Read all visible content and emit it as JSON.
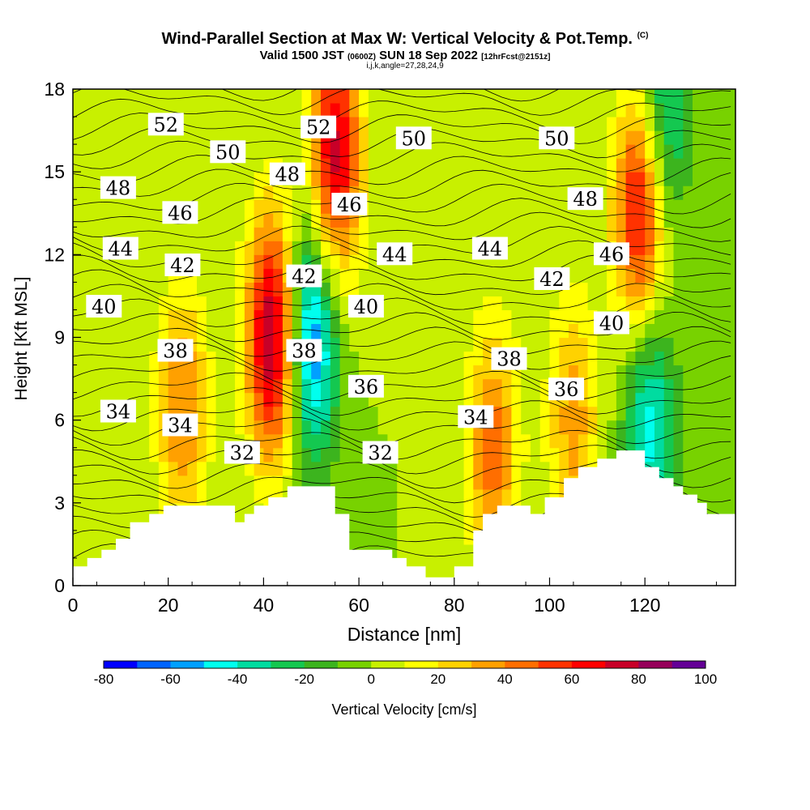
{
  "title": {
    "main": "Wind-Parallel Section at Max W: Vertical Velocity & Pot.Temp.",
    "copyright": "(C)",
    "valid_prefix": "Valid 1500 JST",
    "valid_utc": "(0600Z)",
    "valid_date": "SUN 18 Sep 2022",
    "forecast_note": "[12hrFcst@2151z]",
    "params": "i,j,k,angle=27,28,24,9"
  },
  "colorbar": {
    "label": "Vertical Velocity [cm/s]",
    "tick_labels": [
      "-80",
      "-60",
      "-40",
      "-20",
      "0",
      "20",
      "40",
      "60",
      "80",
      "100"
    ],
    "colors": [
      "#0000ff",
      "#0064ff",
      "#00a0ff",
      "#00ffee",
      "#00dca0",
      "#14c850",
      "#3cb41e",
      "#78d200",
      "#c8f000",
      "#ffff00",
      "#ffd200",
      "#ffa000",
      "#ff6e00",
      "#ff3200",
      "#ff0000",
      "#c80028",
      "#96005a",
      "#640096"
    ]
  },
  "chart_data": {
    "type": "heatmap",
    "xlabel": "Distance [nm]",
    "ylabel": "Height [Kft MSL]",
    "xlim": [
      0,
      139
    ],
    "ylim": [
      0,
      18
    ],
    "x_ticks": [
      "0",
      "20",
      "40",
      "60",
      "80",
      "100",
      "120"
    ],
    "y_ticks": [
      "0",
      "3",
      "6",
      "9",
      "12",
      "15",
      "18"
    ],
    "fill_variable": "Vertical Velocity [cm/s]",
    "fill_range": [
      -80,
      100
    ],
    "velocity_features": [
      {
        "x": 23,
        "y": 6.5,
        "w": 40
      },
      {
        "x": 42,
        "y": 9,
        "w": 85
      },
      {
        "x": 50,
        "y": 9,
        "w": -65
      },
      {
        "x": 55,
        "y": 15.5,
        "w": 75
      },
      {
        "x": 88,
        "y": 5,
        "w": 45
      },
      {
        "x": 105,
        "y": 6,
        "w": 35
      },
      {
        "x": 119,
        "y": 13.5,
        "w": 70
      },
      {
        "x": 121,
        "y": 6,
        "w": -45
      },
      {
        "x": 124,
        "y": 17,
        "w": -40
      }
    ],
    "terrain": [
      [
        0,
        0.7
      ],
      [
        3,
        0.7
      ],
      [
        3,
        1.0
      ],
      [
        6,
        1.0
      ],
      [
        6,
        1.3
      ],
      [
        9,
        1.3
      ],
      [
        9,
        1.7
      ],
      [
        12,
        1.7
      ],
      [
        12,
        2.3
      ],
      [
        16,
        2.3
      ],
      [
        16,
        2.6
      ],
      [
        19,
        2.6
      ],
      [
        19,
        2.9
      ],
      [
        23,
        2.9
      ],
      [
        34,
        2.9
      ],
      [
        34,
        2.3
      ],
      [
        36,
        2.3
      ],
      [
        36,
        2.6
      ],
      [
        38,
        2.6
      ],
      [
        38,
        2.9
      ],
      [
        41,
        2.9
      ],
      [
        41,
        3.2
      ],
      [
        45,
        3.2
      ],
      [
        45,
        3.6
      ],
      [
        55,
        3.6
      ],
      [
        55,
        2.6
      ],
      [
        58,
        2.6
      ],
      [
        58,
        1.3
      ],
      [
        67,
        1.3
      ],
      [
        67,
        1.0
      ],
      [
        70,
        1.0
      ],
      [
        70,
        0.7
      ],
      [
        74,
        0.7
      ],
      [
        74,
        0.3
      ],
      [
        80,
        0.3
      ],
      [
        80,
        0.7
      ],
      [
        84,
        0.7
      ],
      [
        84,
        2.0
      ],
      [
        86,
        2.0
      ],
      [
        86,
        2.6
      ],
      [
        89,
        2.6
      ],
      [
        89,
        2.9
      ],
      [
        96,
        2.9
      ],
      [
        96,
        2.6
      ],
      [
        99,
        2.6
      ],
      [
        99,
        3.2
      ],
      [
        103,
        3.2
      ],
      [
        103,
        3.9
      ],
      [
        106,
        3.9
      ],
      [
        106,
        4.3
      ],
      [
        110,
        4.3
      ],
      [
        110,
        4.6
      ],
      [
        114,
        4.6
      ],
      [
        114,
        4.9
      ],
      [
        120,
        4.9
      ],
      [
        120,
        4.3
      ],
      [
        123,
        4.3
      ],
      [
        123,
        3.9
      ],
      [
        126,
        3.9
      ],
      [
        126,
        3.6
      ],
      [
        128,
        3.6
      ],
      [
        128,
        3.3
      ],
      [
        131,
        3.3
      ],
      [
        131,
        3.0
      ],
      [
        133,
        3.0
      ],
      [
        133,
        2.6
      ],
      [
        139,
        2.6
      ]
    ],
    "contour_labels": [
      {
        "text": "52",
        "x": 19.5,
        "y": 16.7
      },
      {
        "text": "52",
        "x": 51.5,
        "y": 16.6
      },
      {
        "text": "50",
        "x": 32.5,
        "y": 15.7
      },
      {
        "text": "50",
        "x": 71.5,
        "y": 16.2
      },
      {
        "text": "50",
        "x": 101.5,
        "y": 16.2
      },
      {
        "text": "48",
        "x": 9.5,
        "y": 14.4
      },
      {
        "text": "48",
        "x": 45,
        "y": 14.9
      },
      {
        "text": "48",
        "x": 107.5,
        "y": 14.0
      },
      {
        "text": "46",
        "x": 22.5,
        "y": 13.5
      },
      {
        "text": "46",
        "x": 58,
        "y": 13.8
      },
      {
        "text": "46",
        "x": 113,
        "y": 12.0
      },
      {
        "text": "44",
        "x": 10,
        "y": 12.2
      },
      {
        "text": "44",
        "x": 67.5,
        "y": 12.0
      },
      {
        "text": "44",
        "x": 87.5,
        "y": 12.2
      },
      {
        "text": "42",
        "x": 23,
        "y": 11.6
      },
      {
        "text": "42",
        "x": 48.5,
        "y": 11.2
      },
      {
        "text": "42",
        "x": 100.5,
        "y": 11.1
      },
      {
        "text": "40",
        "x": 6.5,
        "y": 10.1
      },
      {
        "text": "40",
        "x": 61.5,
        "y": 10.1
      },
      {
        "text": "40",
        "x": 113,
        "y": 9.5
      },
      {
        "text": "38",
        "x": 21.5,
        "y": 8.5
      },
      {
        "text": "38",
        "x": 48.5,
        "y": 8.5
      },
      {
        "text": "38",
        "x": 91.5,
        "y": 8.2
      },
      {
        "text": "36",
        "x": 61.5,
        "y": 7.2
      },
      {
        "text": "36",
        "x": 103.5,
        "y": 7.1
      },
      {
        "text": "34",
        "x": 9.5,
        "y": 6.3
      },
      {
        "text": "34",
        "x": 22.5,
        "y": 5.8
      },
      {
        "text": "34",
        "x": 84.5,
        "y": 6.1
      },
      {
        "text": "32",
        "x": 35.5,
        "y": 4.8
      },
      {
        "text": "32",
        "x": 64.5,
        "y": 4.8
      }
    ]
  }
}
